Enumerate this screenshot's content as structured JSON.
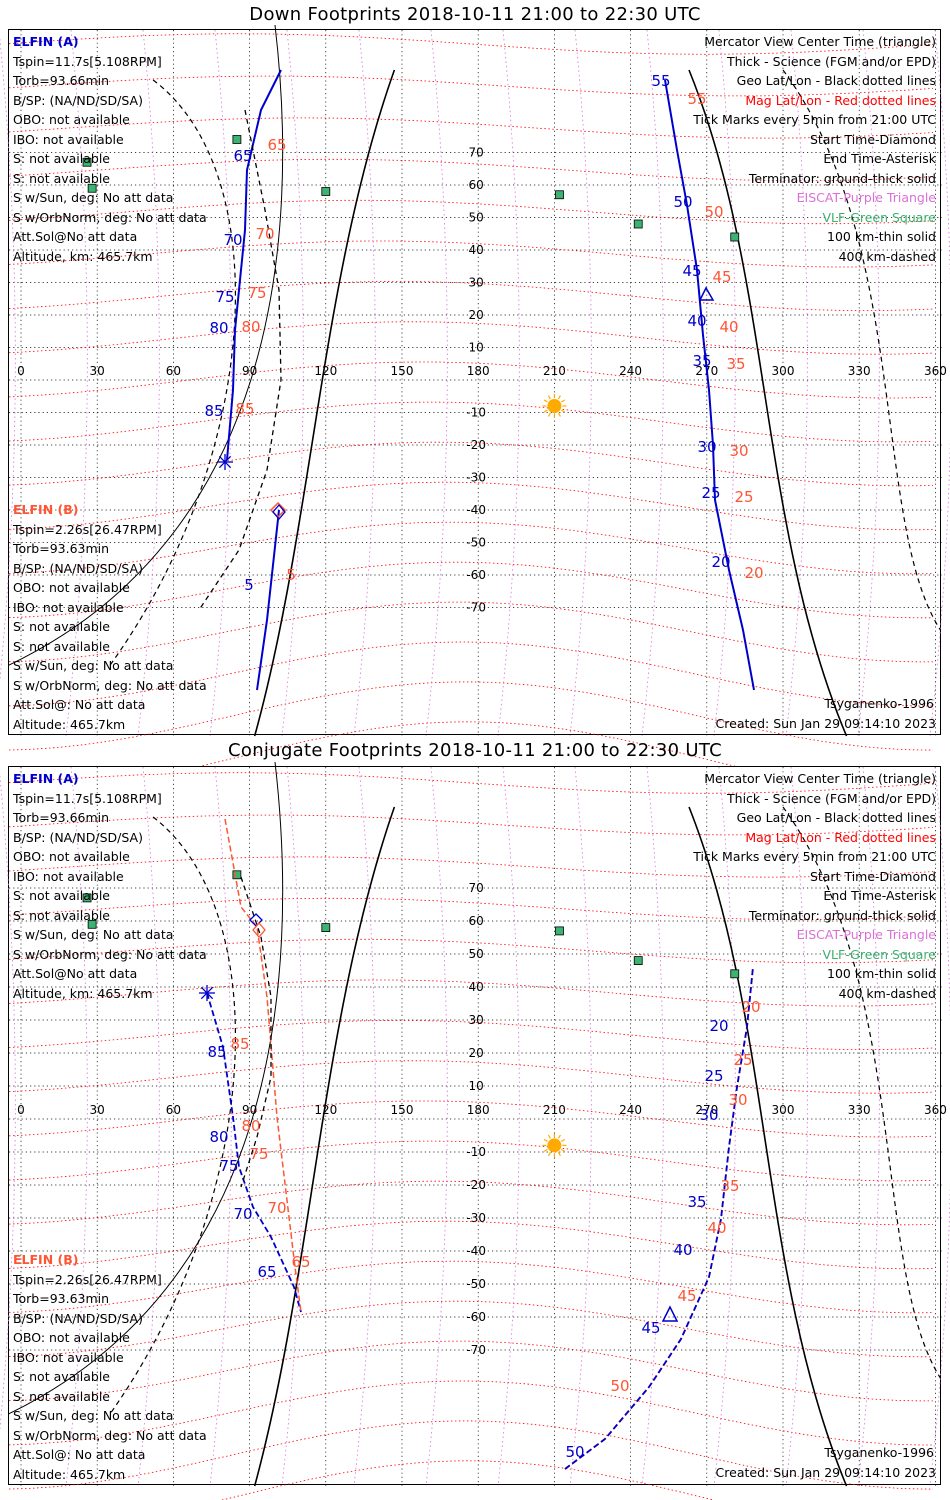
{
  "panels": [
    {
      "id": "down",
      "title": "Down Footprints 2018-10-11 21:00 to 22:30 UTC",
      "elfin_a": {
        "label": "ELFIN (A)",
        "lines": [
          "Tspin=11.7s[5.108RPM]",
          "Torb=93.66min",
          "B/SP: (NA/ND/SD/SA)",
          "OBO: not available",
          "IBO: not available",
          "S: not available",
          "S: not available",
          "S w/Sun, deg: No att data",
          "S w/OrbNorm, deg: No att data",
          "Att.Sol@No att data",
          "Altitude, km: 465.7km"
        ]
      },
      "elfin_b": {
        "label": "ELFIN (B)",
        "lines": [
          "Tspin=2.26s[26.47RPM]",
          "Torb=93.63min",
          "B/SP: (NA/ND/SD/SA)",
          "OBO: not available",
          "IBO: not available",
          "S: not available",
          "S: not available",
          "S w/Sun, deg: No att data",
          "S w/OrbNorm, deg: No att data",
          "Att.Sol@: No att data",
          "Altitude: 465.7km"
        ]
      },
      "created": "Created: Sun Jan 29 09:14:10 2023",
      "model": "Tsyganenko-1996"
    },
    {
      "id": "conjugate",
      "title": "Conjugate Footprints 2018-10-11 21:00 to 22:30 UTC",
      "elfin_a": {
        "label": "ELFIN (A)",
        "lines": [
          "Tspin=11.7s[5.108RPM]",
          "Torb=93.66min",
          "B/SP: (NA/ND/SD/SA)",
          "OBO: not available",
          "IBO: not available",
          "S: not available",
          "S: not available",
          "S w/Sun, deg: No att data",
          "S w/OrbNorm, deg: No att data",
          "Att.Sol@No att data",
          "Altitude, km: 465.7km"
        ]
      },
      "elfin_b": {
        "label": "ELFIN (B)",
        "lines": [
          "Tspin=2.26s[26.47RPM]",
          "Torb=93.63min",
          "B/SP: (NA/ND/SD/SA)",
          "OBO: not available",
          "IBO: not available",
          "S: not available",
          "S: not available",
          "S w/Sun, deg: No att data",
          "S w/OrbNorm, deg: No att data",
          "Att.Sol@: No att data",
          "Altitude: 465.7km"
        ]
      },
      "created": "Created: Sun Jan 29 09:14:10 2023",
      "model": "Tsyganenko-1996"
    }
  ],
  "legend": [
    {
      "text": "Mercator View Center Time (triangle)",
      "color": "#000000"
    },
    {
      "text": "Thick - Science (FGM and/or EPD)",
      "color": "#000000"
    },
    {
      "text": "Geo Lat/Lon - Black dotted lines",
      "color": "#000000"
    },
    {
      "text": "Mag Lat/Lon - Red dotted lines",
      "color": "#ff0000"
    },
    {
      "text": "Tick Marks every 5min from 21:00 UTC",
      "color": "#000000"
    },
    {
      "text": "Start Time-Diamond",
      "color": "#000000"
    },
    {
      "text": "End Time-Asterisk",
      "color": "#000000"
    },
    {
      "text": "Terminator: ground-thick solid",
      "color": "#000000"
    },
    {
      "text": "EISCAT-Purple Triangle",
      "color": "#da70d6"
    },
    {
      "text": "VLF-Green Square",
      "color": "#3cb371"
    },
    {
      "text": "100 km-thin solid",
      "color": "#000000"
    },
    {
      "text": "400 km-dashed",
      "color": "#000000"
    }
  ],
  "map": {
    "projection": "Mercator",
    "lon_ticks": [
      "0",
      "30",
      "60",
      "90",
      "120",
      "150",
      "180",
      "210",
      "240",
      "270",
      "300",
      "330",
      "360"
    ],
    "lat_ticks": [
      "70",
      "60",
      "50",
      "40",
      "30",
      "20",
      "10",
      "-10",
      "-20",
      "-30",
      "-40",
      "-50",
      "-60",
      "-70"
    ],
    "sun_lon": 210,
    "colors": {
      "elfin_a": "#0000cc",
      "elfin_b": "#ff5533",
      "geo_grid": "#000000",
      "mag_grid": "#ff0000",
      "eiscat": "#da70d6",
      "vlf": "#3cb371",
      "sun": "#ffaa00"
    },
    "vlf_stations": [
      [
        85,
        74
      ],
      [
        26,
        67
      ],
      [
        28,
        59
      ],
      [
        120,
        58
      ],
      [
        212,
        57
      ],
      [
        243,
        48
      ],
      [
        281,
        44
      ]
    ]
  },
  "tracks": {
    "down": {
      "a_tick_labels": [
        "55",
        "50",
        "45",
        "40",
        "35",
        "30",
        "25",
        "20",
        "65",
        "70",
        "75",
        "80",
        "85"
      ],
      "a_mag_labels": [
        "55",
        "50",
        "45",
        "40",
        "35",
        "30",
        "25",
        "20",
        "65",
        "70",
        "75",
        "80",
        "85"
      ],
      "b_tick_labels": [
        "5"
      ],
      "b_mag_labels": [
        "5"
      ]
    },
    "conjugate": {
      "a_tick_labels": [
        "20",
        "25",
        "30",
        "35",
        "40",
        "45",
        "50",
        "85",
        "80",
        "75",
        "70",
        "65"
      ],
      "a_mag_labels": [
        "20",
        "25",
        "30",
        "35",
        "40",
        "45",
        "50",
        "85",
        "80",
        "75",
        "70",
        "65"
      ]
    }
  }
}
